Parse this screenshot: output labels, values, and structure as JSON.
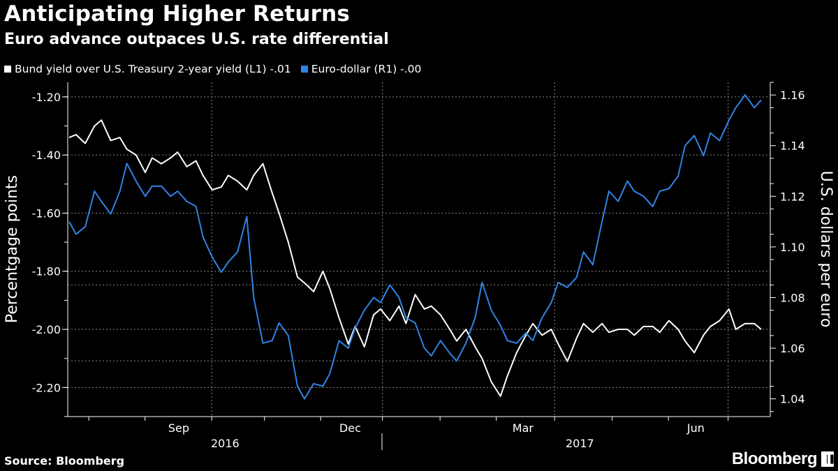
{
  "header": {
    "title": "Anticipating Higher Returns",
    "subtitle": "Euro advance outpaces U.S. rate differential"
  },
  "footer": {
    "source": "Source: Bloomberg",
    "logo_text": "Bloomberg",
    "logo_mark": "▕▐"
  },
  "colors": {
    "background": "#000000",
    "series_white": "#ffffff",
    "series_blue": "#2f84e6",
    "grid": "#8a8a8a"
  },
  "chart_data": {
    "type": "line",
    "title": "Anticipating Higher Returns",
    "subtitle": "Euro advance outpaces U.S. rate differential",
    "ylabel_left": "Percentgage points",
    "ylabel_right": "U.S. dollars per euro",
    "y_left_ticks": [
      "-1.20",
      "-1.40",
      "-1.60",
      "-1.80",
      "-2.00",
      "-2.20"
    ],
    "y_left_range": [
      -2.3,
      -1.15
    ],
    "y_right_ticks": [
      "1.16",
      "1.14",
      "1.12",
      "1.10",
      "1.08",
      "1.06",
      "1.04"
    ],
    "y_right_range": [
      1.033,
      1.165
    ],
    "x_month_labels": [
      "Sep",
      "Dec",
      "Mar",
      "Jun"
    ],
    "x_year_labels": [
      "2016",
      "2017"
    ],
    "legend_position": "top-left",
    "grid": true,
    "series": [
      {
        "name": "Bund yield over U.S. Treasury 2-year yield (L1) -.01",
        "axis": "left",
        "color": "#ffffff",
        "x": [
          0,
          3,
          7,
          11,
          14,
          18,
          22,
          25,
          29,
          33,
          36,
          40,
          44,
          47,
          51,
          55,
          58,
          62,
          66,
          69,
          73,
          77,
          80,
          84,
          88,
          91,
          95,
          99,
          102,
          106,
          110,
          113,
          117,
          121,
          124,
          128,
          132,
          135,
          139,
          143,
          146,
          150,
          154,
          157,
          161,
          165,
          168,
          172,
          176,
          179,
          183,
          187,
          190,
          194,
          198,
          201,
          205,
          209,
          212,
          216,
          220,
          223,
          227,
          231,
          234,
          238,
          242,
          245,
          249,
          253,
          256,
          260,
          264,
          267,
          271,
          275,
          278,
          282,
          286,
          289,
          293,
          297,
          300
        ],
        "values": [
          -1.34,
          -1.33,
          -1.36,
          -1.3,
          -1.28,
          -1.35,
          -1.34,
          -1.38,
          -1.4,
          -1.46,
          -1.41,
          -1.43,
          -1.41,
          -1.39,
          -1.44,
          -1.42,
          -1.47,
          -1.52,
          -1.51,
          -1.47,
          -1.49,
          -1.52,
          -1.47,
          -1.43,
          -1.53,
          -1.6,
          -1.7,
          -1.82,
          -1.84,
          -1.87,
          -1.8,
          -1.86,
          -1.96,
          -2.05,
          -1.99,
          -2.06,
          -1.95,
          -1.93,
          -1.97,
          -1.92,
          -1.98,
          -1.88,
          -1.93,
          -1.92,
          -1.95,
          -2.0,
          -2.04,
          -2.0,
          -2.06,
          -2.1,
          -2.18,
          -2.23,
          -2.16,
          -2.08,
          -2.02,
          -1.98,
          -2.02,
          -2.0,
          -2.05,
          -2.11,
          -2.03,
          -1.98,
          -2.01,
          -1.98,
          -2.01,
          -2.0,
          -2.0,
          -2.02,
          -1.99,
          -1.99,
          -2.01,
          -1.97,
          -2.0,
          -2.04,
          -2.08,
          -2.02,
          -1.99,
          -1.97,
          -1.93,
          -2.0,
          -1.98,
          -1.98,
          -2.0
        ]
      },
      {
        "name": "Euro-dollar (R1) -.00",
        "axis": "right",
        "color": "#2f84e6",
        "x": [
          0,
          3,
          7,
          11,
          14,
          18,
          22,
          25,
          29,
          33,
          36,
          40,
          44,
          47,
          51,
          55,
          58,
          62,
          66,
          69,
          73,
          77,
          80,
          84,
          88,
          91,
          95,
          99,
          102,
          106,
          110,
          113,
          117,
          121,
          124,
          128,
          132,
          135,
          139,
          143,
          146,
          150,
          154,
          157,
          161,
          165,
          168,
          172,
          176,
          179,
          183,
          187,
          190,
          194,
          198,
          201,
          205,
          209,
          212,
          216,
          220,
          223,
          227,
          231,
          234,
          238,
          242,
          245,
          249,
          253,
          256,
          260,
          264,
          267,
          271,
          275,
          278,
          282,
          286,
          289,
          293,
          297,
          300
        ],
        "values": [
          1.11,
          1.105,
          1.108,
          1.122,
          1.118,
          1.113,
          1.122,
          1.133,
          1.126,
          1.12,
          1.124,
          1.124,
          1.12,
          1.122,
          1.118,
          1.116,
          1.104,
          1.096,
          1.09,
          1.094,
          1.098,
          1.112,
          1.08,
          1.062,
          1.063,
          1.07,
          1.065,
          1.045,
          1.04,
          1.046,
          1.045,
          1.05,
          1.063,
          1.06,
          1.068,
          1.075,
          1.08,
          1.078,
          1.085,
          1.08,
          1.072,
          1.07,
          1.06,
          1.057,
          1.063,
          1.058,
          1.055,
          1.062,
          1.072,
          1.086,
          1.075,
          1.069,
          1.063,
          1.062,
          1.066,
          1.063,
          1.072,
          1.078,
          1.086,
          1.084,
          1.088,
          1.098,
          1.093,
          1.11,
          1.122,
          1.118,
          1.126,
          1.122,
          1.12,
          1.116,
          1.122,
          1.123,
          1.128,
          1.14,
          1.144,
          1.136,
          1.145,
          1.142,
          1.15,
          1.155,
          1.16,
          1.155,
          1.158
        ]
      }
    ]
  }
}
